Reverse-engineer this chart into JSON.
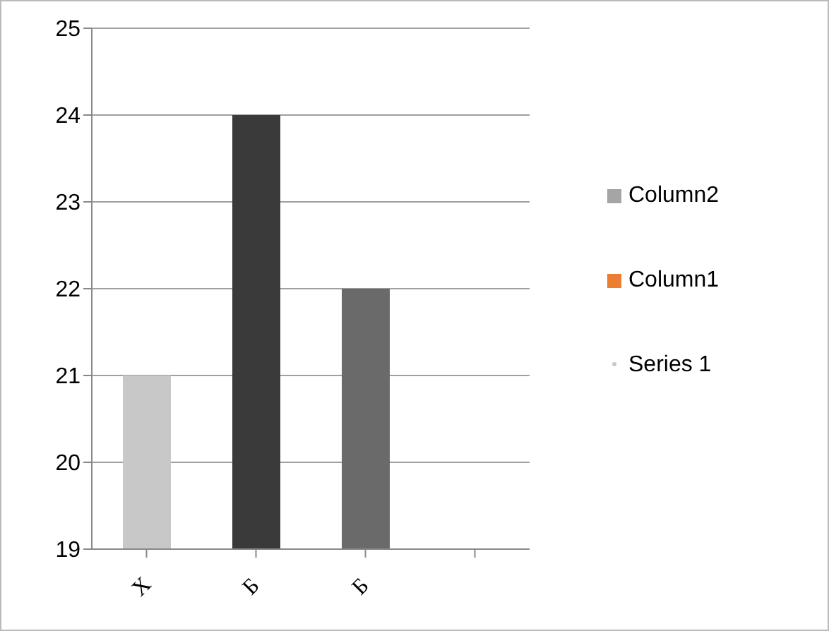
{
  "chart_data": {
    "type": "bar",
    "categories": [
      "Х",
      "Б",
      "Б",
      null
    ],
    "series": [
      {
        "name": "Column2",
        "color": "#a5a5a5",
        "values": [
          null,
          null,
          null,
          null
        ]
      },
      {
        "name": "Column1",
        "color": "#ed7d31",
        "values": [
          null,
          null,
          null,
          null
        ]
      },
      {
        "name": "Series 1",
        "values": [
          21,
          24,
          22,
          null
        ],
        "colors": [
          "#c8c8c8",
          "#3a3a3a",
          "#6a6a6a",
          null
        ]
      }
    ],
    "ylim": [
      19,
      25
    ],
    "yticks": [
      19,
      20,
      21,
      22,
      23,
      24,
      25
    ],
    "grid": "y",
    "legend": "right"
  }
}
